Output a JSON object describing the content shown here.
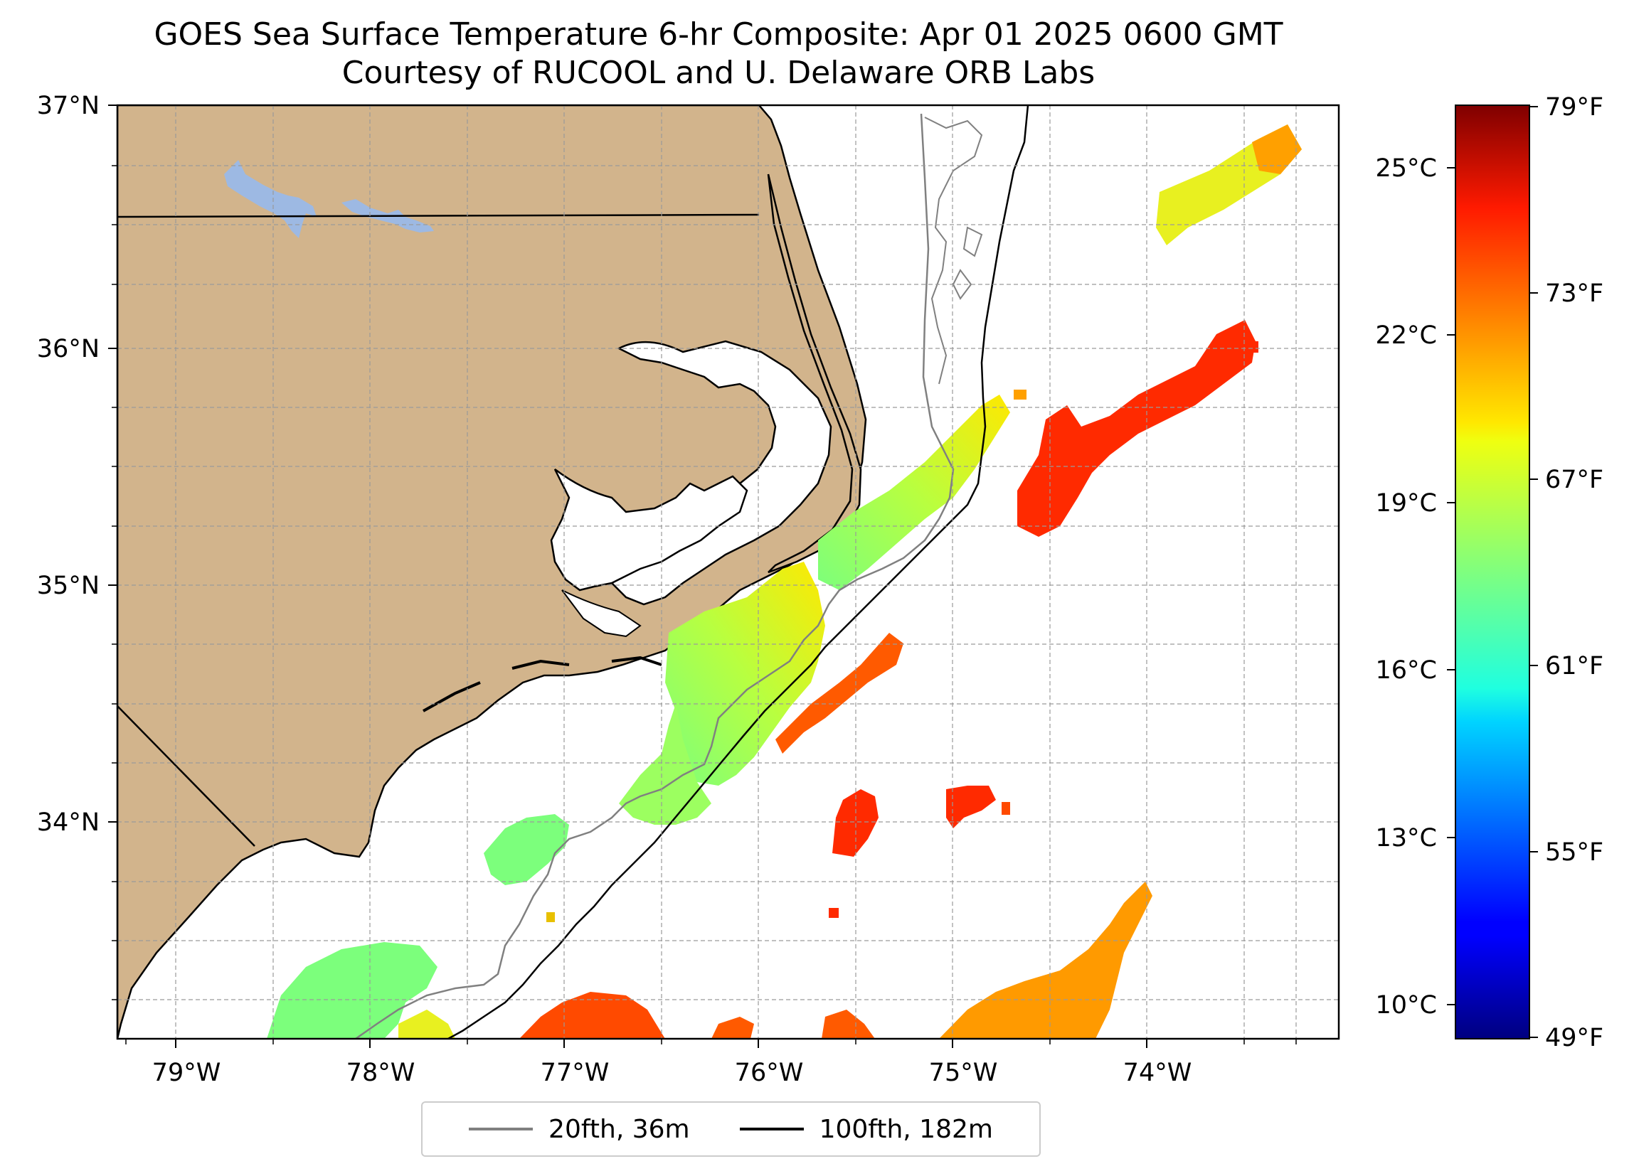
{
  "title": {
    "line1": "GOES Sea Surface Temperature 6-hr Composite: Apr 01 2025 0600 GMT",
    "line2": "Courtesy of RUCOOL and U. Delaware ORB Labs"
  },
  "map": {
    "lat_ticks": [
      "37°N",
      "36°N",
      "35°N",
      "34°N"
    ],
    "lon_ticks": [
      "79°W",
      "78°W",
      "77°W",
      "76°W",
      "75°W",
      "74°W"
    ],
    "land_color": "#D2B48C",
    "lake_color": "#9DB9E3",
    "ocean_color": "#ffffff"
  },
  "colorbar": {
    "celsius_ticks": [
      "25°C",
      "22°C",
      "19°C",
      "16°C",
      "13°C",
      "10°C"
    ],
    "fahrenheit_ticks": [
      "79°F",
      "73°F",
      "67°F",
      "61°F",
      "55°F",
      "49°F"
    ],
    "colormap": "jet"
  },
  "legend": {
    "items": [
      {
        "label": "20fth, 36m",
        "color": "#808080"
      },
      {
        "label": "100fth, 182m",
        "color": "#000000"
      }
    ]
  }
}
